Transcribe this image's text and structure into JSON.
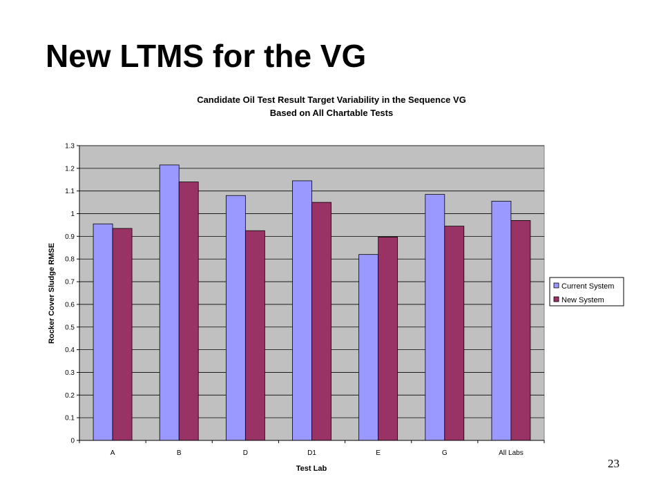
{
  "slide": {
    "title": "New LTMS for the VG",
    "page_number": "23"
  },
  "colors": {
    "plot_background": "#c0c0c0",
    "current_system": "#9999ff",
    "new_system": "#993366"
  },
  "chart_data": {
    "type": "bar",
    "title": "Candidate Oil Test Result Target Variability in the Sequence VG",
    "subtitle": "Based on All Chartable Tests",
    "xlabel": "Test Lab",
    "ylabel": "Rocker Cover Sludge RMSE",
    "categories": [
      "A",
      "B",
      "D",
      "D1",
      "E",
      "G",
      "All Labs"
    ],
    "series": [
      {
        "name": "Current System",
        "values": [
          0.955,
          1.215,
          1.08,
          1.145,
          0.82,
          1.085,
          1.055
        ]
      },
      {
        "name": "New System",
        "values": [
          0.935,
          1.14,
          0.925,
          1.05,
          0.897,
          0.945,
          0.97
        ]
      }
    ],
    "ylim": [
      0,
      1.3
    ],
    "yticks": [
      "0",
      "0.1",
      "0.2",
      "0.3",
      "0.4",
      "0.5",
      "0.6",
      "0.7",
      "0.8",
      "0.9",
      "1",
      "1.1",
      "1.2",
      "1.3"
    ],
    "grid": true,
    "legend_position": "right"
  }
}
